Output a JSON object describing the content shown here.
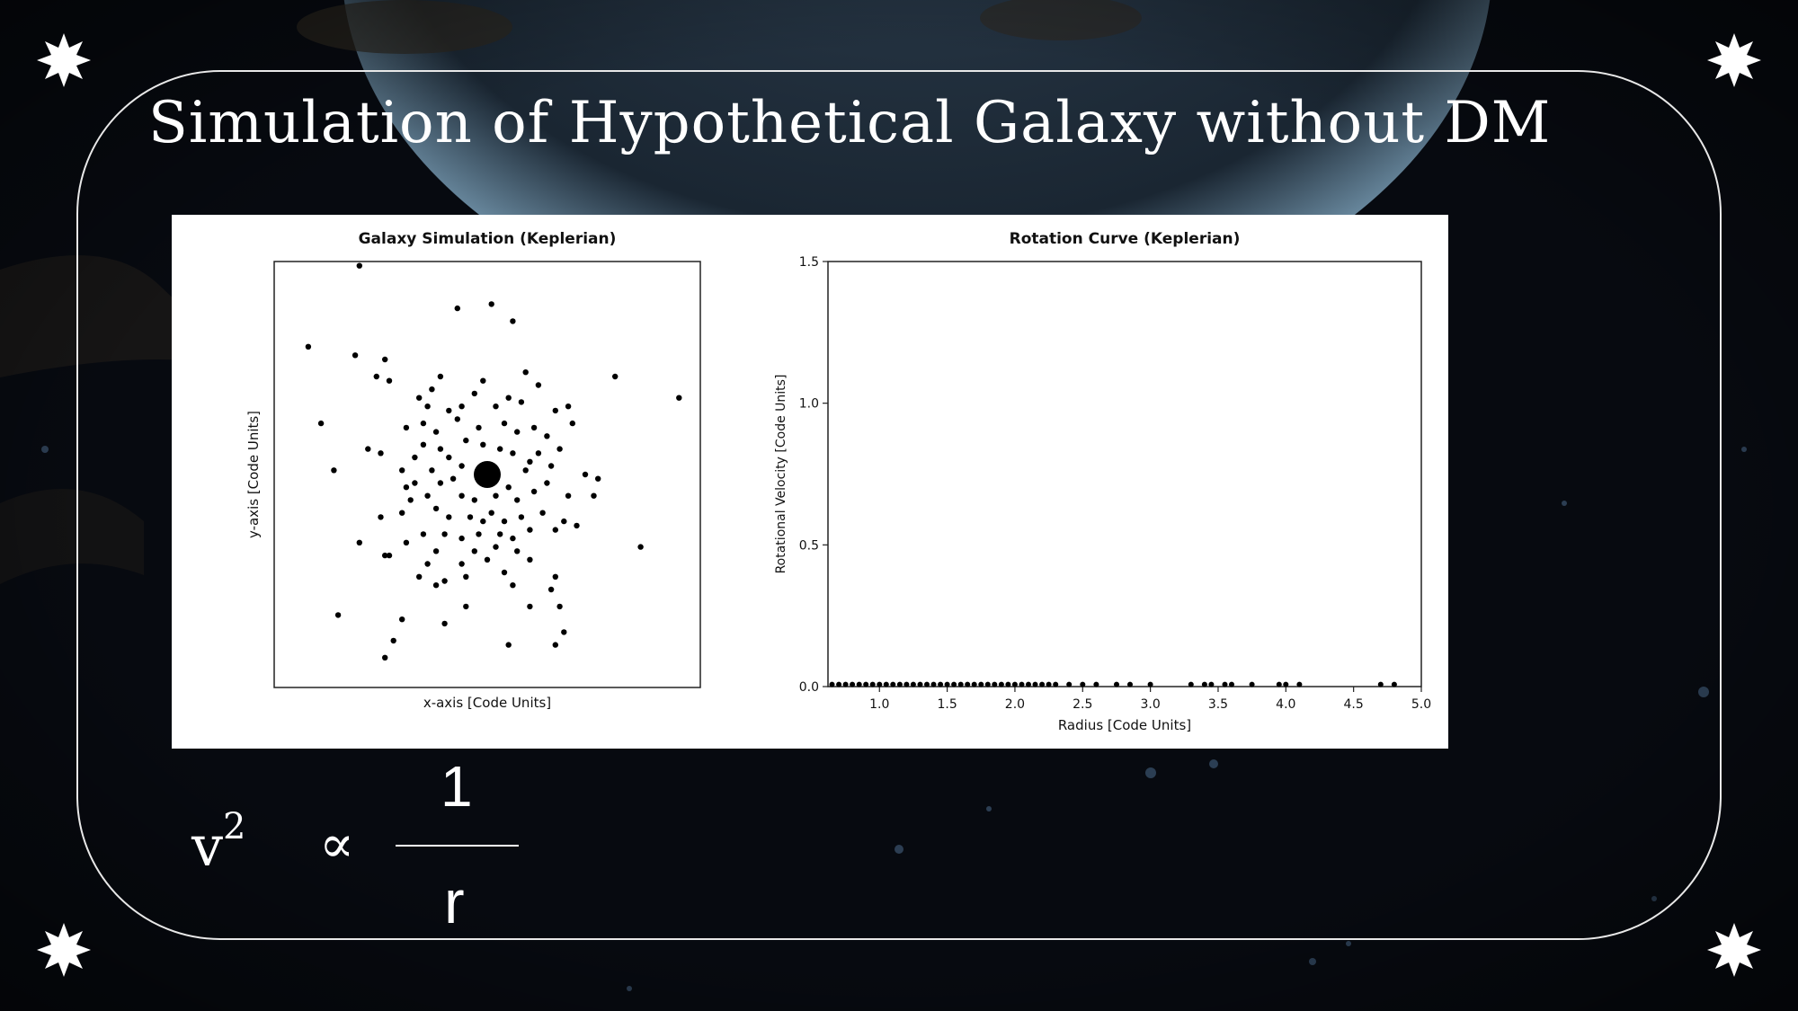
{
  "slide": {
    "title": "Simulation of Hypothetical Galaxy without DM",
    "formula": {
      "lhs_base": "v",
      "lhs_exponent": "2",
      "relation_symbol": "∝",
      "numerator": "1",
      "denominator": "r"
    },
    "decoration_icon": "eight-point-star-icon"
  },
  "chart_data": [
    {
      "type": "scatter",
      "title": "Galaxy Simulation (Keplerian)",
      "xlabel": "x-axis [Code Units]",
      "ylabel": "y-axis [Code Units]",
      "xlim": [
        -5,
        5
      ],
      "ylim": [
        -5,
        5
      ],
      "ticks_visible": false,
      "grid": false,
      "color": "#000000",
      "central_mass": {
        "x": 0,
        "y": 0
      },
      "points": [
        [
          -3,
          4.9
        ],
        [
          0.1,
          4.0
        ],
        [
          -0.7,
          3.9
        ],
        [
          0.6,
          3.6
        ],
        [
          -4.2,
          3.0
        ],
        [
          -3.1,
          2.8
        ],
        [
          -2.4,
          2.7
        ],
        [
          -2.3,
          2.2
        ],
        [
          -2.6,
          2.3
        ],
        [
          3.0,
          2.3
        ],
        [
          4.5,
          1.8
        ],
        [
          -1.1,
          2.3
        ],
        [
          -1.3,
          2.0
        ],
        [
          -1.6,
          1.8
        ],
        [
          -1.4,
          1.6
        ],
        [
          -0.1,
          2.2
        ],
        [
          0.9,
          2.4
        ],
        [
          1.2,
          2.1
        ],
        [
          -0.3,
          1.9
        ],
        [
          0.2,
          1.6
        ],
        [
          -0.6,
          1.6
        ],
        [
          0.5,
          1.8
        ],
        [
          0.8,
          1.7
        ],
        [
          1.6,
          1.5
        ],
        [
          1.9,
          1.6
        ],
        [
          2.0,
          1.2
        ],
        [
          -0.9,
          1.5
        ],
        [
          -1.9,
          1.1
        ],
        [
          -1.5,
          1.2
        ],
        [
          -1.2,
          1.0
        ],
        [
          -0.7,
          1.3
        ],
        [
          -0.2,
          1.1
        ],
        [
          0.4,
          1.2
        ],
        [
          0.7,
          1.0
        ],
        [
          1.1,
          1.1
        ],
        [
          1.4,
          0.9
        ],
        [
          1.7,
          0.6
        ],
        [
          -3.9,
          1.2
        ],
        [
          -2.8,
          0.6
        ],
        [
          -2.5,
          0.5
        ],
        [
          -1.1,
          0.6
        ],
        [
          -0.9,
          0.4
        ],
        [
          -0.5,
          0.8
        ],
        [
          -0.1,
          0.7
        ],
        [
          0.3,
          0.6
        ],
        [
          0.6,
          0.5
        ],
        [
          1.0,
          0.3
        ],
        [
          1.2,
          0.5
        ],
        [
          0.9,
          0.1
        ],
        [
          2.3,
          0.0
        ],
        [
          2.6,
          -0.1
        ],
        [
          -3.6,
          0.1
        ],
        [
          -1.7,
          0.4
        ],
        [
          -1.3,
          0.1
        ],
        [
          -1.1,
          -0.2
        ],
        [
          -0.6,
          0.2
        ],
        [
          -0.8,
          -0.1
        ],
        [
          -1.4,
          -0.5
        ],
        [
          -0.6,
          -0.5
        ],
        [
          -0.3,
          -0.6
        ],
        [
          0.2,
          -0.5
        ],
        [
          0.5,
          -0.3
        ],
        [
          0.7,
          -0.6
        ],
        [
          1.1,
          -0.4
        ],
        [
          1.4,
          -0.2
        ],
        [
          2.5,
          -0.5
        ],
        [
          -2.0,
          -0.9
        ],
        [
          -1.8,
          -0.6
        ],
        [
          -1.2,
          -0.8
        ],
        [
          -0.9,
          -1.0
        ],
        [
          -0.4,
          -1.0
        ],
        [
          0.1,
          -0.9
        ],
        [
          0.4,
          -1.1
        ],
        [
          0.8,
          -1.0
        ],
        [
          1.3,
          -0.9
        ],
        [
          1.8,
          -1.1
        ],
        [
          2.1,
          -1.2
        ],
        [
          -2.5,
          -1.0
        ],
        [
          -1.5,
          -1.4
        ],
        [
          -1.0,
          -1.4
        ],
        [
          -0.6,
          -1.5
        ],
        [
          -0.2,
          -1.4
        ],
        [
          0.3,
          -1.4
        ],
        [
          1.0,
          -1.3
        ],
        [
          1.6,
          -1.3
        ],
        [
          -3.0,
          -1.6
        ],
        [
          -2.4,
          -1.9
        ],
        [
          -1.9,
          -1.6
        ],
        [
          -1.2,
          -1.8
        ],
        [
          0.7,
          -1.8
        ],
        [
          3.6,
          -1.7
        ],
        [
          -2.3,
          -1.9
        ],
        [
          -1.4,
          -2.1
        ],
        [
          -0.6,
          -2.1
        ],
        [
          0.0,
          -2.0
        ],
        [
          1.0,
          -2.0
        ],
        [
          -1.6,
          -2.4
        ],
        [
          -1.2,
          -2.6
        ],
        [
          -0.5,
          -2.4
        ],
        [
          0.4,
          -2.3
        ],
        [
          1.6,
          -2.4
        ],
        [
          1.5,
          -2.7
        ],
        [
          -0.5,
          -3.1
        ],
        [
          1.0,
          -3.1
        ],
        [
          1.7,
          -3.1
        ],
        [
          -3.5,
          -3.3
        ],
        [
          -1.0,
          -2.5
        ],
        [
          0.6,
          -2.6
        ],
        [
          -2.0,
          -3.4
        ],
        [
          1.8,
          -3.7
        ],
        [
          -2.2,
          -3.9
        ],
        [
          -2.4,
          -4.3
        ],
        [
          0.5,
          -4.0
        ],
        [
          1.6,
          -4.0
        ],
        [
          -1.0,
          -3.5
        ],
        [
          0.2,
          -1.7
        ],
        [
          -0.3,
          -1.8
        ],
        [
          -1.7,
          -0.2
        ],
        [
          1.5,
          0.2
        ],
        [
          -2.0,
          0.1
        ],
        [
          -1.9,
          -0.3
        ],
        [
          1.9,
          -0.5
        ],
        [
          -0.1,
          -1.1
        ],
        [
          0.6,
          -1.5
        ],
        [
          -1.5,
          0.7
        ]
      ]
    },
    {
      "type": "scatter",
      "title": "Rotation Curve (Keplerian)",
      "xlabel": "Radius [Code Units]",
      "ylabel": "Rotational Velocity [Code Units]",
      "xlim": [
        0.62,
        5.0
      ],
      "ylim": [
        0,
        1.5
      ],
      "xticks": [
        "1.0",
        "1.5",
        "2.0",
        "2.5",
        "3.0",
        "3.5",
        "4.0",
        "4.5",
        "5.0"
      ],
      "yticks": [
        "0.0",
        "0.5",
        "1.0",
        "1.5"
      ],
      "grid": false,
      "color": "#000000",
      "x": [
        0.65,
        0.7,
        0.75,
        0.8,
        0.85,
        0.9,
        0.95,
        1.0,
        1.05,
        1.1,
        1.15,
        1.2,
        1.25,
        1.3,
        1.35,
        1.4,
        1.45,
        1.5,
        1.55,
        1.6,
        1.65,
        1.7,
        1.75,
        1.8,
        1.85,
        1.9,
        1.95,
        2.0,
        2.05,
        2.1,
        2.15,
        2.2,
        2.25,
        2.3,
        2.4,
        2.5,
        2.6,
        2.75,
        2.85,
        3.0,
        3.3,
        3.4,
        3.45,
        3.55,
        3.6,
        3.75,
        3.95,
        4.0,
        4.1,
        4.7,
        4.8
      ],
      "y": [
        0.003,
        0.003,
        0.003,
        0.003,
        0.003,
        0.003,
        0.003,
        0.003,
        0.003,
        0.003,
        0.003,
        0.003,
        0.003,
        0.003,
        0.003,
        0.003,
        0.003,
        0.003,
        0.003,
        0.003,
        0.003,
        0.003,
        0.003,
        0.003,
        0.003,
        0.003,
        0.003,
        0.003,
        0.003,
        0.003,
        0.003,
        0.003,
        0.003,
        0.003,
        0.003,
        0.003,
        0.003,
        0.003,
        0.003,
        0.003,
        0.003,
        0.003,
        0.003,
        0.003,
        0.003,
        0.003,
        0.003,
        0.003,
        0.003,
        0.003,
        0.003
      ]
    }
  ]
}
